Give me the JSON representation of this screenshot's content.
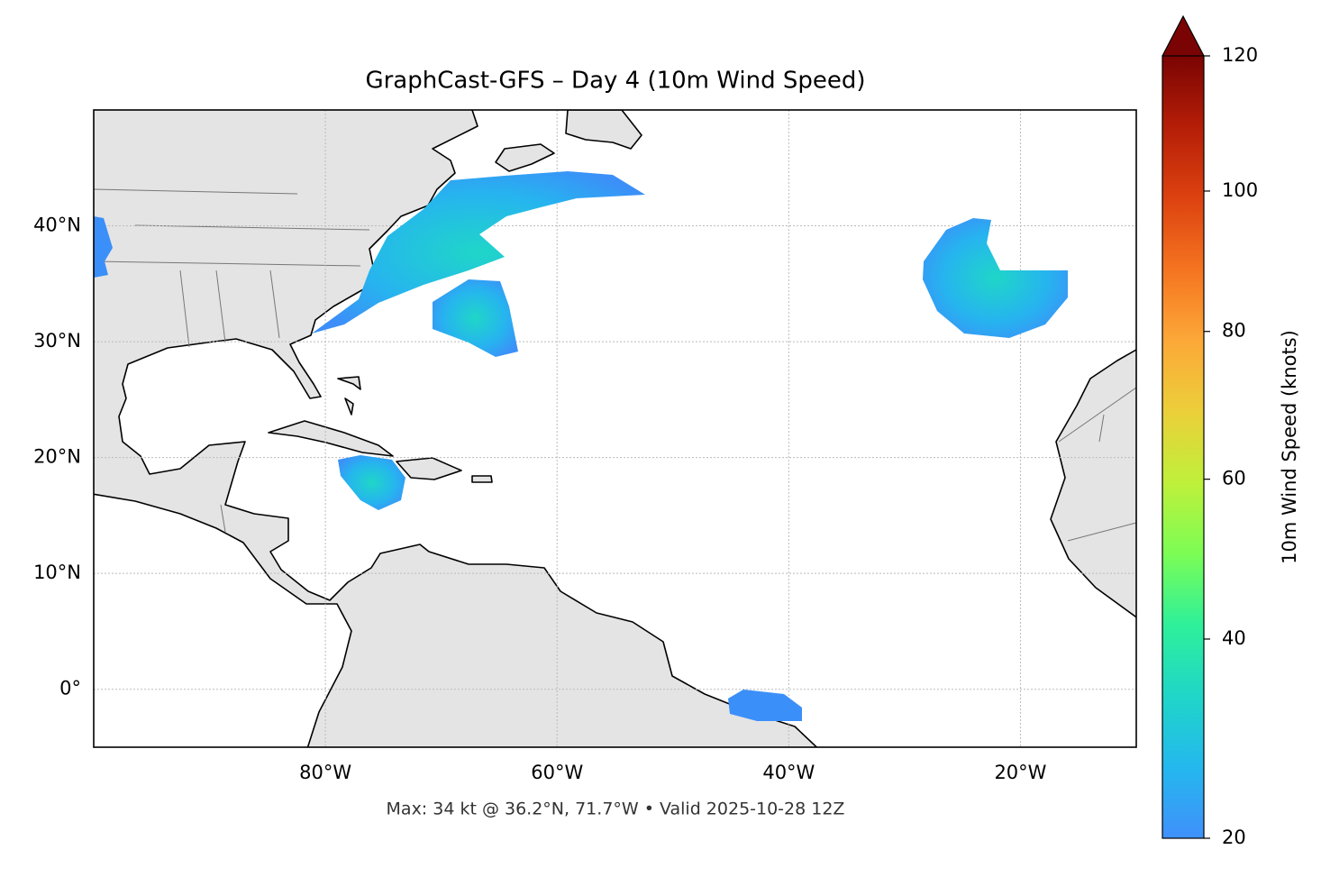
{
  "chart_data": {
    "type": "map",
    "title": "GraphCast-GFS – Day 4 (10m Wind Speed)",
    "caption": "Max: 34 kt @ 36.2°N, 71.7°W • Valid 2025-10-28 12Z",
    "xlim": [
      -100,
      -10
    ],
    "ylim": [
      -5,
      50
    ],
    "xticks": [
      {
        "value": -80,
        "label": "80°W"
      },
      {
        "value": -60,
        "label": "60°W"
      },
      {
        "value": -40,
        "label": "40°W"
      },
      {
        "value": -20,
        "label": "20°W"
      }
    ],
    "yticks": [
      {
        "value": 0,
        "label": "0°"
      },
      {
        "value": 10,
        "label": "10°N"
      },
      {
        "value": 20,
        "label": "20°N"
      },
      {
        "value": 30,
        "label": "30°N"
      },
      {
        "value": 40,
        "label": "40°N"
      }
    ],
    "grid": true,
    "colorbar": {
      "label": "10m Wind Speed (knots)",
      "lim": [
        20,
        120
      ],
      "ticks": [
        20,
        40,
        60,
        80,
        100,
        120
      ],
      "norm": {
        "type": "power",
        "gamma": 0.85
      },
      "extend": "max",
      "colormap": [
        "#4090fb",
        "#24b8ee",
        "#1fd6c8",
        "#2ef09a",
        "#7cfd55",
        "#bff03a",
        "#eccf3a",
        "#fca838",
        "#f57420",
        "#dc4210",
        "#b51e07",
        "#7a0403"
      ]
    }
  }
}
